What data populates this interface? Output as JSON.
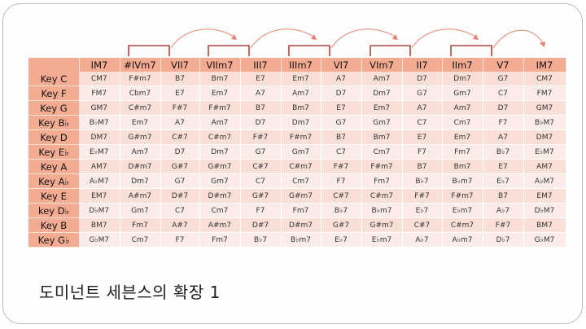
{
  "title": "도미넌트 세븐스의 확장 1",
  "table": {
    "columns": [
      "IM7",
      "#IVm7",
      "VII7",
      "VIIm7",
      "III7",
      "IIIm7",
      "VI7",
      "VIm7",
      "II7",
      "IIm7",
      "V7",
      "IM7"
    ],
    "rows": [
      {
        "key": "Key C",
        "cells": [
          "CM7",
          "F#m7",
          "B7",
          "Bm7",
          "E7",
          "Em7",
          "A7",
          "Am7",
          "D7",
          "Dm7",
          "G7",
          "CM7"
        ]
      },
      {
        "key": "Key F",
        "cells": [
          "FM7",
          "Cbm7",
          "E7",
          "Em7",
          "A7",
          "Am7",
          "D7",
          "Dm7",
          "G7",
          "Gm7",
          "C7",
          "FM7"
        ]
      },
      {
        "key": "Key G",
        "cells": [
          "GM7",
          "C#m7",
          "F#7",
          "F#m7",
          "B7",
          "Bm7",
          "E7",
          "Em7",
          "A7",
          "Am7",
          "D7",
          "GM7"
        ]
      },
      {
        "key": "Key B♭",
        "cells": [
          "B♭M7",
          "Em7",
          "A7",
          "Am7",
          "D7",
          "Dm7",
          "G7",
          "Gm7",
          "C7",
          "Cm7",
          "F7",
          "B♭M7"
        ]
      },
      {
        "key": "Key D",
        "cells": [
          "DM7",
          "G#m7",
          "C#7",
          "C#m7",
          "F#7",
          "F#m7",
          "B7",
          "Bm7",
          "E7",
          "Em7",
          "A7",
          "DM7"
        ]
      },
      {
        "key": "Key E♭",
        "cells": [
          "E♭M7",
          "Am7",
          "D7",
          "Dm7",
          "G7",
          "Gm7",
          "C7",
          "Cm7",
          "F7",
          "Fm7",
          "B♭7",
          "E♭M7"
        ]
      },
      {
        "key": "Key A",
        "cells": [
          "AM7",
          "D#m7",
          "G#7",
          "G#m7",
          "C#7",
          "C#m7",
          "F#7",
          "F#m7",
          "B7",
          "Bm7",
          "E7",
          "AM7"
        ]
      },
      {
        "key": "Key A♭",
        "cells": [
          "A♭M7",
          "Dm7",
          "G7",
          "Gm7",
          "C7",
          "Cm7",
          "F7",
          "Fm7",
          "B♭7",
          "B♭m7",
          "E♭7",
          "A♭M7"
        ]
      },
      {
        "key": "Key E",
        "cells": [
          "EM7",
          "A#m7",
          "D#7",
          "D#m7",
          "G#7",
          "G#m7",
          "C#7",
          "C#m7",
          "F#7",
          "F#m7",
          "B7",
          "EM7"
        ]
      },
      {
        "key": "key D♭",
        "cells": [
          "D♭M7",
          "Gm7",
          "C7",
          "Cm7",
          "F7",
          "Fm7",
          "B♭7",
          "B♭m7",
          "E♭7",
          "E♭m7",
          "A♭7",
          "D♭M7"
        ]
      },
      {
        "key": "Key B",
        "cells": [
          "BM7",
          "Fm7",
          "A#7",
          "A#m7",
          "D#7",
          "D#m7",
          "G#7",
          "G#m7",
          "C#7",
          "C#m7",
          "F#7",
          "BM7"
        ]
      },
      {
        "key": "Key G♭",
        "cells": [
          "G♭M7",
          "Cm7",
          "F7",
          "Fm7",
          "B♭7",
          "B♭m7",
          "E♭7",
          "E♭m7",
          "A♭7",
          "A♭m7",
          "D♭7",
          "G♭M7"
        ]
      }
    ]
  },
  "colors": {
    "header": "#f3ab91",
    "row_odd": "#f9dfd6",
    "row_even": "#fbecea",
    "bracket": "#b8433a",
    "arc": "#e5836e"
  }
}
